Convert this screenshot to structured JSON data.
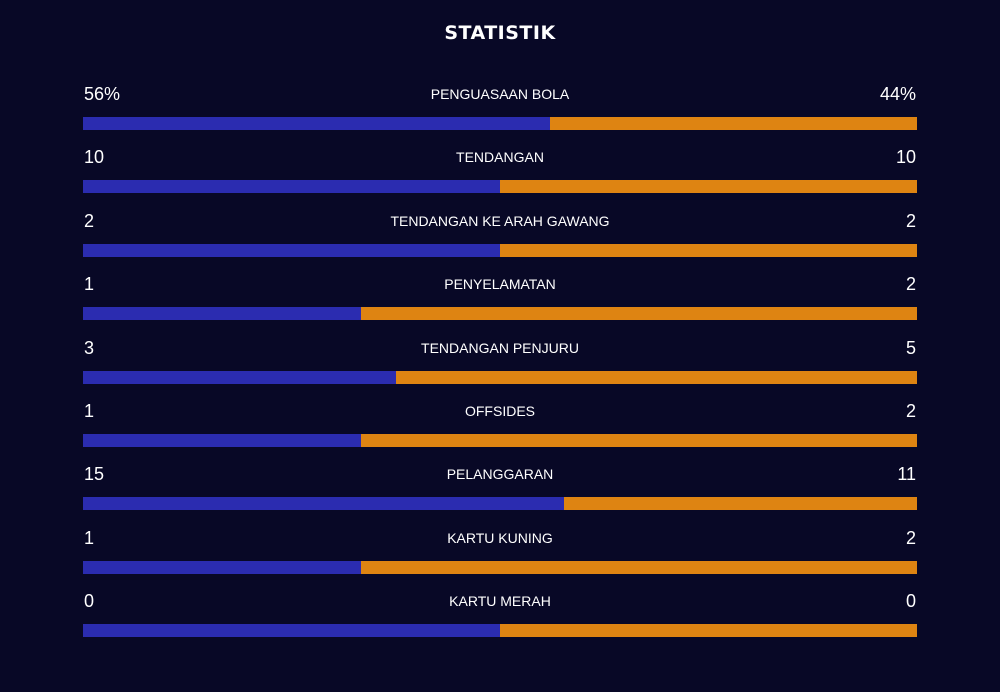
{
  "title": "STATISTIK",
  "colors": {
    "background": "#080826",
    "home": "#2b2cb0",
    "away": "#de8412",
    "text": "#ffffff"
  },
  "stats": [
    {
      "label": "PENGUASAAN BOLA",
      "home": "56%",
      "away": "44%",
      "home_value": 56,
      "away_value": 44
    },
    {
      "label": "TENDANGAN",
      "home": "10",
      "away": "10",
      "home_value": 10,
      "away_value": 10
    },
    {
      "label": "TENDANGAN KE ARAH GAWANG",
      "home": "2",
      "away": "2",
      "home_value": 2,
      "away_value": 2
    },
    {
      "label": "PENYELAMATAN",
      "home": "1",
      "away": "2",
      "home_value": 1,
      "away_value": 2
    },
    {
      "label": "TENDANGAN PENJURU",
      "home": "3",
      "away": "5",
      "home_value": 3,
      "away_value": 5
    },
    {
      "label": "OFFSIDES",
      "home": "1",
      "away": "2",
      "home_value": 1,
      "away_value": 2
    },
    {
      "label": "PELANGGARAN",
      "home": "15",
      "away": "11",
      "home_value": 15,
      "away_value": 11
    },
    {
      "label": "KARTU KUNING",
      "home": "1",
      "away": "2",
      "home_value": 1,
      "away_value": 2
    },
    {
      "label": "KARTU MERAH",
      "home": "0",
      "away": "0",
      "home_value": 0,
      "away_value": 0
    }
  ]
}
